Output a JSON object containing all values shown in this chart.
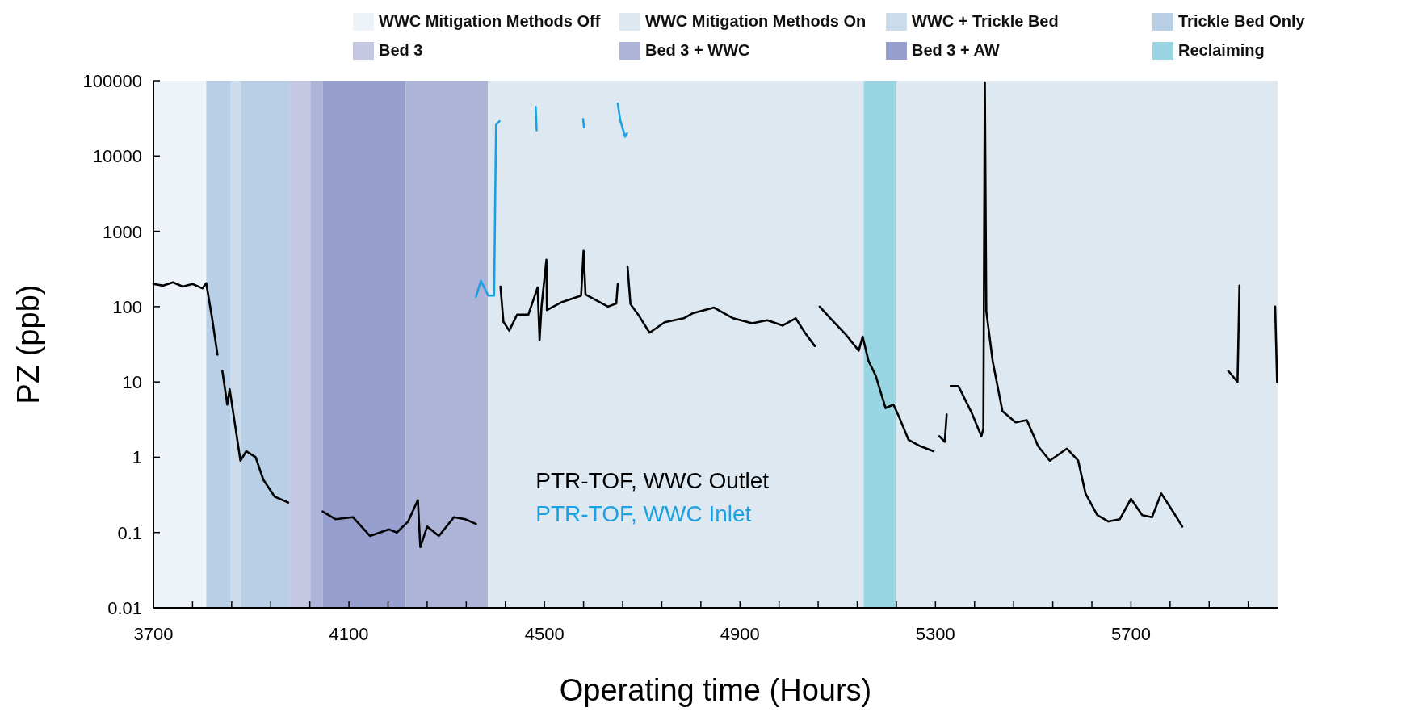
{
  "chart_data": {
    "type": "line",
    "xlabel": "Operating time (Hours)",
    "ylabel": "PZ (ppb)",
    "log": "y",
    "legend": "top right",
    "marker": "none",
    "line_style": "solid",
    "xlim": [
      3700,
      6000
    ],
    "ylim": [
      0.01,
      100000
    ],
    "xticks": [
      3700,
      {
        "value": 3780,
        "label": null
      },
      {
        "value": 3860,
        "label": null
      },
      {
        "value": 3940,
        "label": null
      },
      {
        "value": 4020,
        "label": null
      },
      4100,
      {
        "value": 4180,
        "label": null
      },
      {
        "value": 4260,
        "label": null
      },
      {
        "value": 4340,
        "label": null
      },
      {
        "value": 4420,
        "label": null
      },
      4500,
      {
        "value": 4580,
        "label": null
      },
      {
        "value": 4660,
        "label": null
      },
      {
        "value": 4740,
        "label": null
      },
      {
        "value": 4820,
        "label": null
      },
      4900,
      {
        "value": 4980,
        "label": null
      },
      {
        "value": 5060,
        "label": null
      },
      {
        "value": 5140,
        "label": null
      },
      {
        "value": 5220,
        "label": null
      },
      5300,
      {
        "value": 5380,
        "label": null
      },
      {
        "value": 5460,
        "label": null
      },
      {
        "value": 5540,
        "label": null
      },
      {
        "value": 5620,
        "label": null
      },
      5700,
      {
        "value": 5780,
        "label": null
      },
      {
        "value": 5860,
        "label": null
      },
      {
        "value": 5940,
        "label": null
      }
    ],
    "yticks": [
      0.01,
      0.1,
      1,
      10,
      100,
      1000,
      10000,
      100000
    ],
    "bands": [
      {
        "axis": "x",
        "from": 3700,
        "to": 3808,
        "label": "WWC Mitigation Methods Off",
        "color": "#eef3f9"
      },
      {
        "axis": "x",
        "from": 4384,
        "to": 5153,
        "label": "WWC Mitigation Methods On",
        "color": "#dde8f1"
      },
      {
        "axis": "x",
        "from": 3857,
        "to": 3879,
        "label": "WWC + Trickle Bed",
        "color": "#ccdcec"
      },
      {
        "axis": "x",
        "from": 3808,
        "to": 3857,
        "label": "Trickle Bed Only",
        "color": "#b8cfe5"
      },
      {
        "axis": "x",
        "from": 3979,
        "to": 4021,
        "label": "Bed 3",
        "color": "#c5c8e2"
      },
      {
        "axis": "x",
        "from": 4021,
        "to": 4046,
        "label": "Bed 3 + WWC",
        "color": "#aeb3d8"
      },
      {
        "axis": "x",
        "from": 4046,
        "to": 4216,
        "label": "Bed 3 + AW",
        "color": "#979fcf"
      },
      {
        "axis": "x",
        "from": 5153,
        "to": 5220,
        "label": "Reclaiming",
        "color": "#99d5e2"
      },
      {
        "axis": "x",
        "from": 3879,
        "to": 3979,
        "color": "#b8cfe5"
      },
      {
        "axis": "x",
        "from": 4216,
        "to": 4384,
        "color": "#aeb3d8"
      },
      {
        "axis": "x",
        "from": 5220,
        "to": 6000,
        "color": "#dde8f1"
      }
    ],
    "series": [
      {
        "name": "PTR-TOF, WWC Outlet",
        "color": "#000000",
        "x": [
          3700,
          3720,
          3740,
          3760,
          3780,
          3800,
          3808,
          3820,
          3831,
          3836,
          3841,
          3851,
          3856,
          3878,
          3890,
          3909,
          3925,
          3948,
          3976,
          4010,
          4046,
          4073,
          4108,
          4143,
          4182,
          4198,
          4221,
          4241,
          4246,
          4260,
          4284,
          4315,
          4338,
          4360,
          4385,
          4410,
          4416,
          4428,
          4444,
          4467,
          4486,
          4490,
          4494,
          4504,
          4505,
          4536,
          4575,
          4580,
          4584,
          4630,
          4647,
          4650,
          4660,
          4670,
          4676,
          4692,
          4715,
          4746,
          4785,
          4804,
          4847,
          4886,
          4925,
          4956,
          4987,
          5014,
          5033,
          5053,
          5058,
          5063,
          5085,
          5116,
          5143,
          5151,
          5163,
          5178,
          5186,
          5198,
          5214,
          5225,
          5245,
          5269,
          5296,
          5302,
          5308,
          5319,
          5323,
          5327,
          5331,
          5347,
          5374,
          5394,
          5398,
          5401,
          5404,
          5417,
          5437,
          5464,
          5487,
          5510,
          5534,
          5569,
          5592,
          5607,
          5631,
          5654,
          5677,
          5700,
          5723,
          5743,
          5762,
          5786,
          5805,
          5850,
          5899,
          5918,
          5922,
          5960,
          5995,
          5999
        ],
        "values": [
          200,
          190,
          210,
          185,
          200,
          175,
          205,
          70,
          23,
          null,
          14,
          5,
          8,
          0.9,
          1.2,
          1.0,
          0.5,
          0.3,
          0.25,
          null,
          0.19,
          0.15,
          0.16,
          0.09,
          0.11,
          0.1,
          0.14,
          0.27,
          0.064,
          0.12,
          0.09,
          0.16,
          0.15,
          0.13,
          null,
          185,
          63,
          48,
          78,
          78,
          180,
          36,
          100,
          420,
          90,
          115,
          140,
          550,
          145,
          100,
          110,
          200,
          null,
          340,
          108,
          78,
          45,
          62,
          70,
          82,
          97,
          70,
          60,
          66,
          56,
          70,
          45,
          30,
          null,
          100,
          70,
          43,
          26,
          40,
          19,
          12,
          8,
          4.5,
          5,
          3.5,
          1.7,
          1.4,
          1.2,
          null,
          1.9,
          1.6,
          3.7,
          null,
          8.8,
          8.8,
          3.9,
          1.9,
          2.4,
          95000,
          87,
          19,
          4.1,
          2.9,
          3.1,
          1.4,
          0.9,
          1.3,
          0.9,
          0.33,
          0.17,
          0.14,
          0.15,
          0.28,
          0.17,
          0.16,
          0.33,
          0.19,
          0.12,
          null,
          14,
          10,
          190,
          null,
          100,
          10
        ]
      },
      {
        "name": "PTR-TOF, WWC Inlet",
        "color": "#1ba1e2",
        "x": [
          4360,
          4370,
          4385,
          4397,
          4401,
          4408,
          4440,
          4482,
          4484,
          4530,
          4579,
          4581,
          4620,
          4650,
          4655,
          4665,
          4669
        ],
        "values": [
          135,
          220,
          140,
          140,
          26000,
          29000,
          null,
          45000,
          22000,
          null,
          31000,
          24000,
          null,
          50000,
          30000,
          18000,
          20000
        ]
      }
    ]
  }
}
